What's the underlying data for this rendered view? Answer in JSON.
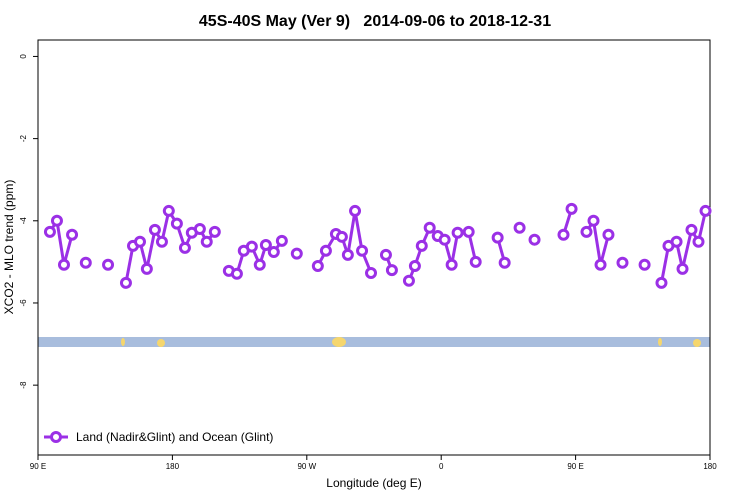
{
  "chart_data": {
    "type": "line",
    "title": "45S-40S May (Ver 9)   2014-09-06 to 2018-12-31",
    "xlabel": "Longitude (deg E)",
    "ylabel": "XCO2 - MLO trend (ppm)",
    "xlim": [
      90,
      540
    ],
    "xticks": [
      {
        "value": 90,
        "label": "90 E"
      },
      180,
      {
        "value": 270,
        "label": "90 W"
      },
      {
        "value": 360,
        "label": "0"
      },
      {
        "value": 450,
        "label": "90 E"
      },
      {
        "value": 540,
        "label": "180"
      }
    ],
    "ylim": [
      -9.7,
      0.4
    ],
    "yticks": [
      0,
      -2,
      -4,
      -6,
      -8
    ],
    "legend": "bottom-left",
    "series": [
      {
        "name": "Land (Nadir&Glint) and Ocean (Glint)",
        "color": "#9b30e6",
        "x": [
          98,
          102.7,
          107.4,
          112.8,
          null,
          122,
          null,
          136.9,
          null,
          148.9,
          153.6,
          158.3,
          162.9,
          168.3,
          173,
          177.6,
          183,
          188.4,
          193,
          198.4,
          203,
          208.4,
          null,
          217.8,
          223.2,
          227.8,
          233.2,
          238.5,
          242.6,
          247.9,
          253.3,
          null,
          263.3,
          null,
          277.4,
          282.8,
          289.5,
          293.5,
          297.5,
          302.3,
          307,
          313,
          null,
          323,
          327,
          null,
          338.4,
          342.4,
          347,
          352.3,
          357.7,
          362.3,
          367,
          371,
          378.4,
          383.1,
          null,
          397.8,
          402.5,
          null,
          412.5,
          null,
          422.5,
          null,
          441.9,
          447.3,
          null,
          457.3,
          462,
          466.7,
          472,
          null,
          481.4,
          null,
          496.2,
          null,
          507.5,
          512.2,
          517.6,
          521.6,
          527.6,
          532.3,
          537
        ],
        "values": [
          -4.27,
          -4.0,
          -5.07,
          -4.34,
          null,
          -5.02,
          null,
          -5.07,
          null,
          -5.51,
          -4.61,
          -4.51,
          -5.17,
          -4.22,
          -4.51,
          -3.76,
          -4.07,
          -4.66,
          -4.29,
          -4.2,
          -4.51,
          -4.27,
          null,
          -5.22,
          -5.29,
          -4.73,
          -4.63,
          -5.07,
          -4.59,
          -4.76,
          -4.49,
          null,
          -4.8,
          null,
          -5.1,
          -4.73,
          -4.32,
          -4.39,
          -4.83,
          -3.76,
          -4.73,
          -5.27,
          null,
          -4.83,
          -5.2,
          null,
          -5.46,
          -5.1,
          -4.61,
          -4.17,
          -4.37,
          -4.46,
          -5.07,
          -4.29,
          -4.27,
          -5.0,
          null,
          -4.41,
          -5.02,
          null,
          -4.17,
          null,
          -4.46,
          null,
          -4.34,
          -3.71,
          null,
          -4.27,
          -4.0,
          -5.07,
          -4.34,
          null,
          -5.02,
          null,
          -5.07,
          null,
          -5.51,
          -4.61,
          -4.51,
          -5.17,
          -4.22,
          -4.51,
          -3.76
        ]
      }
    ]
  }
}
